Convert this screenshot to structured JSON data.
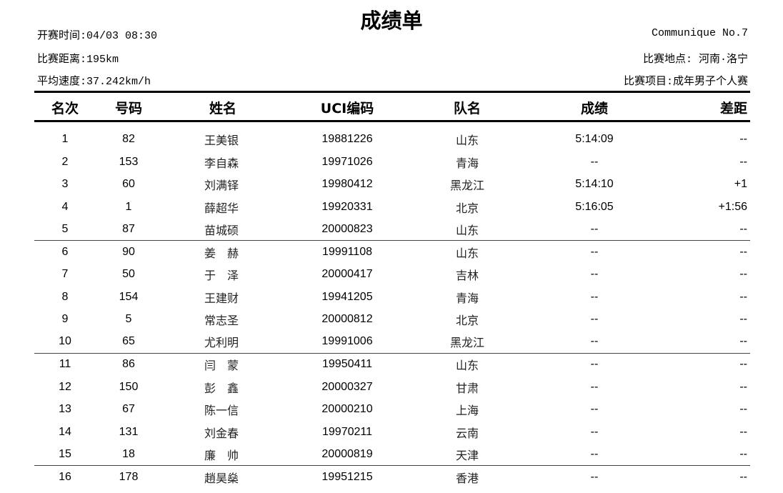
{
  "title": "成绩单",
  "meta_left": {
    "start_time": "开赛时间:04/03 08:30",
    "distance": "比赛距离:195km",
    "avg_speed": "平均速度:37.242km/h"
  },
  "meta_right": {
    "communique": "Communique No.7",
    "location": "比赛地点: 河南·洛宁",
    "event": "比赛项目:成年男子个人赛"
  },
  "columns": {
    "rank": "名次",
    "number": "号码",
    "name": "姓名",
    "uci": "UCI编码",
    "team": "队名",
    "time": "成绩",
    "gap": "差距"
  },
  "rows": [
    {
      "rank": "1",
      "number": "82",
      "name": "王美银",
      "uci": "19881226",
      "team": "山东",
      "time": "5:14:09",
      "gap": "--"
    },
    {
      "rank": "2",
      "number": "153",
      "name": "李自森",
      "uci": "19971026",
      "team": "青海",
      "time": "--",
      "gap": "--"
    },
    {
      "rank": "3",
      "number": "60",
      "name": "刘满铎",
      "uci": "19980412",
      "team": "黑龙江",
      "time": "5:14:10",
      "gap": "+1"
    },
    {
      "rank": "4",
      "number": "1",
      "name": "薛超华",
      "uci": "19920331",
      "team": "北京",
      "time": "5:16:05",
      "gap": "+1:56"
    },
    {
      "rank": "5",
      "number": "87",
      "name": "苗城硕",
      "uci": "20000823",
      "team": "山东",
      "time": "--",
      "gap": "--"
    },
    {
      "rank": "6",
      "number": "90",
      "name": "姜　赫",
      "uci": "19991108",
      "team": "山东",
      "time": "--",
      "gap": "--"
    },
    {
      "rank": "7",
      "number": "50",
      "name": "于　泽",
      "uci": "20000417",
      "team": "吉林",
      "time": "--",
      "gap": "--"
    },
    {
      "rank": "8",
      "number": "154",
      "name": "王建财",
      "uci": "19941205",
      "team": "青海",
      "time": "--",
      "gap": "--"
    },
    {
      "rank": "9",
      "number": "5",
      "name": "常志圣",
      "uci": "20000812",
      "team": "北京",
      "time": "--",
      "gap": "--"
    },
    {
      "rank": "10",
      "number": "65",
      "name": "尤利明",
      "uci": "19991006",
      "team": "黑龙江",
      "time": "--",
      "gap": "--"
    },
    {
      "rank": "11",
      "number": "86",
      "name": "闫　蒙",
      "uci": "19950411",
      "team": "山东",
      "time": "--",
      "gap": "--"
    },
    {
      "rank": "12",
      "number": "150",
      "name": "彭　鑫",
      "uci": "20000327",
      "team": "甘肃",
      "time": "--",
      "gap": "--"
    },
    {
      "rank": "13",
      "number": "67",
      "name": "陈一信",
      "uci": "20000210",
      "team": "上海",
      "time": "--",
      "gap": "--"
    },
    {
      "rank": "14",
      "number": "131",
      "name": "刘金春",
      "uci": "19970211",
      "team": "云南",
      "time": "--",
      "gap": "--"
    },
    {
      "rank": "15",
      "number": "18",
      "name": "廉　帅",
      "uci": "20000819",
      "team": "天津",
      "time": "--",
      "gap": "--"
    },
    {
      "rank": "16",
      "number": "178",
      "name": "趙昊燊",
      "uci": "19951215",
      "team": "香港",
      "time": "--",
      "gap": "--"
    }
  ]
}
